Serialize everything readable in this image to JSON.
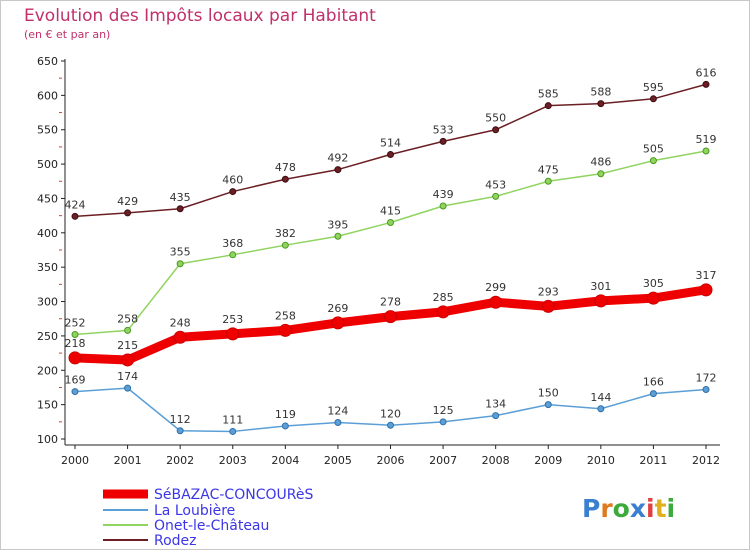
{
  "chart_data": {
    "type": "line",
    "title": "Evolution des Impôts locaux par Habitant",
    "subtitle": "(en € et par an)",
    "xlabel": "",
    "ylabel": "",
    "categories": [
      "2000",
      "2001",
      "2002",
      "2003",
      "2004",
      "2005",
      "2006",
      "2007",
      "2008",
      "2009",
      "2010",
      "2011",
      "2012"
    ],
    "ylim": [
      100,
      650
    ],
    "yticks": [
      100,
      150,
      200,
      250,
      300,
      350,
      400,
      450,
      500,
      550,
      600,
      650
    ],
    "grid": false,
    "legend_position": "bottom-left",
    "series": [
      {
        "name": "SéBAZAC-CONCOURèS",
        "color": "#ee0000",
        "values": [
          218,
          215,
          248,
          253,
          258,
          269,
          278,
          285,
          299,
          293,
          301,
          305,
          317
        ]
      },
      {
        "name": "La Loubière",
        "color": "#5b9fd6",
        "values": [
          169,
          174,
          112,
          111,
          119,
          124,
          120,
          125,
          134,
          150,
          144,
          166,
          172
        ]
      },
      {
        "name": "Onet-le-Château",
        "color": "#8fd460",
        "values": [
          252,
          258,
          355,
          368,
          382,
          395,
          415,
          439,
          453,
          475,
          486,
          505,
          519
        ]
      },
      {
        "name": "Rodez",
        "color": "#6b1f24",
        "values": [
          424,
          429,
          435,
          460,
          478,
          492,
          514,
          533,
          550,
          585,
          588,
          595,
          616
        ]
      }
    ],
    "brand": "Proxiti"
  }
}
